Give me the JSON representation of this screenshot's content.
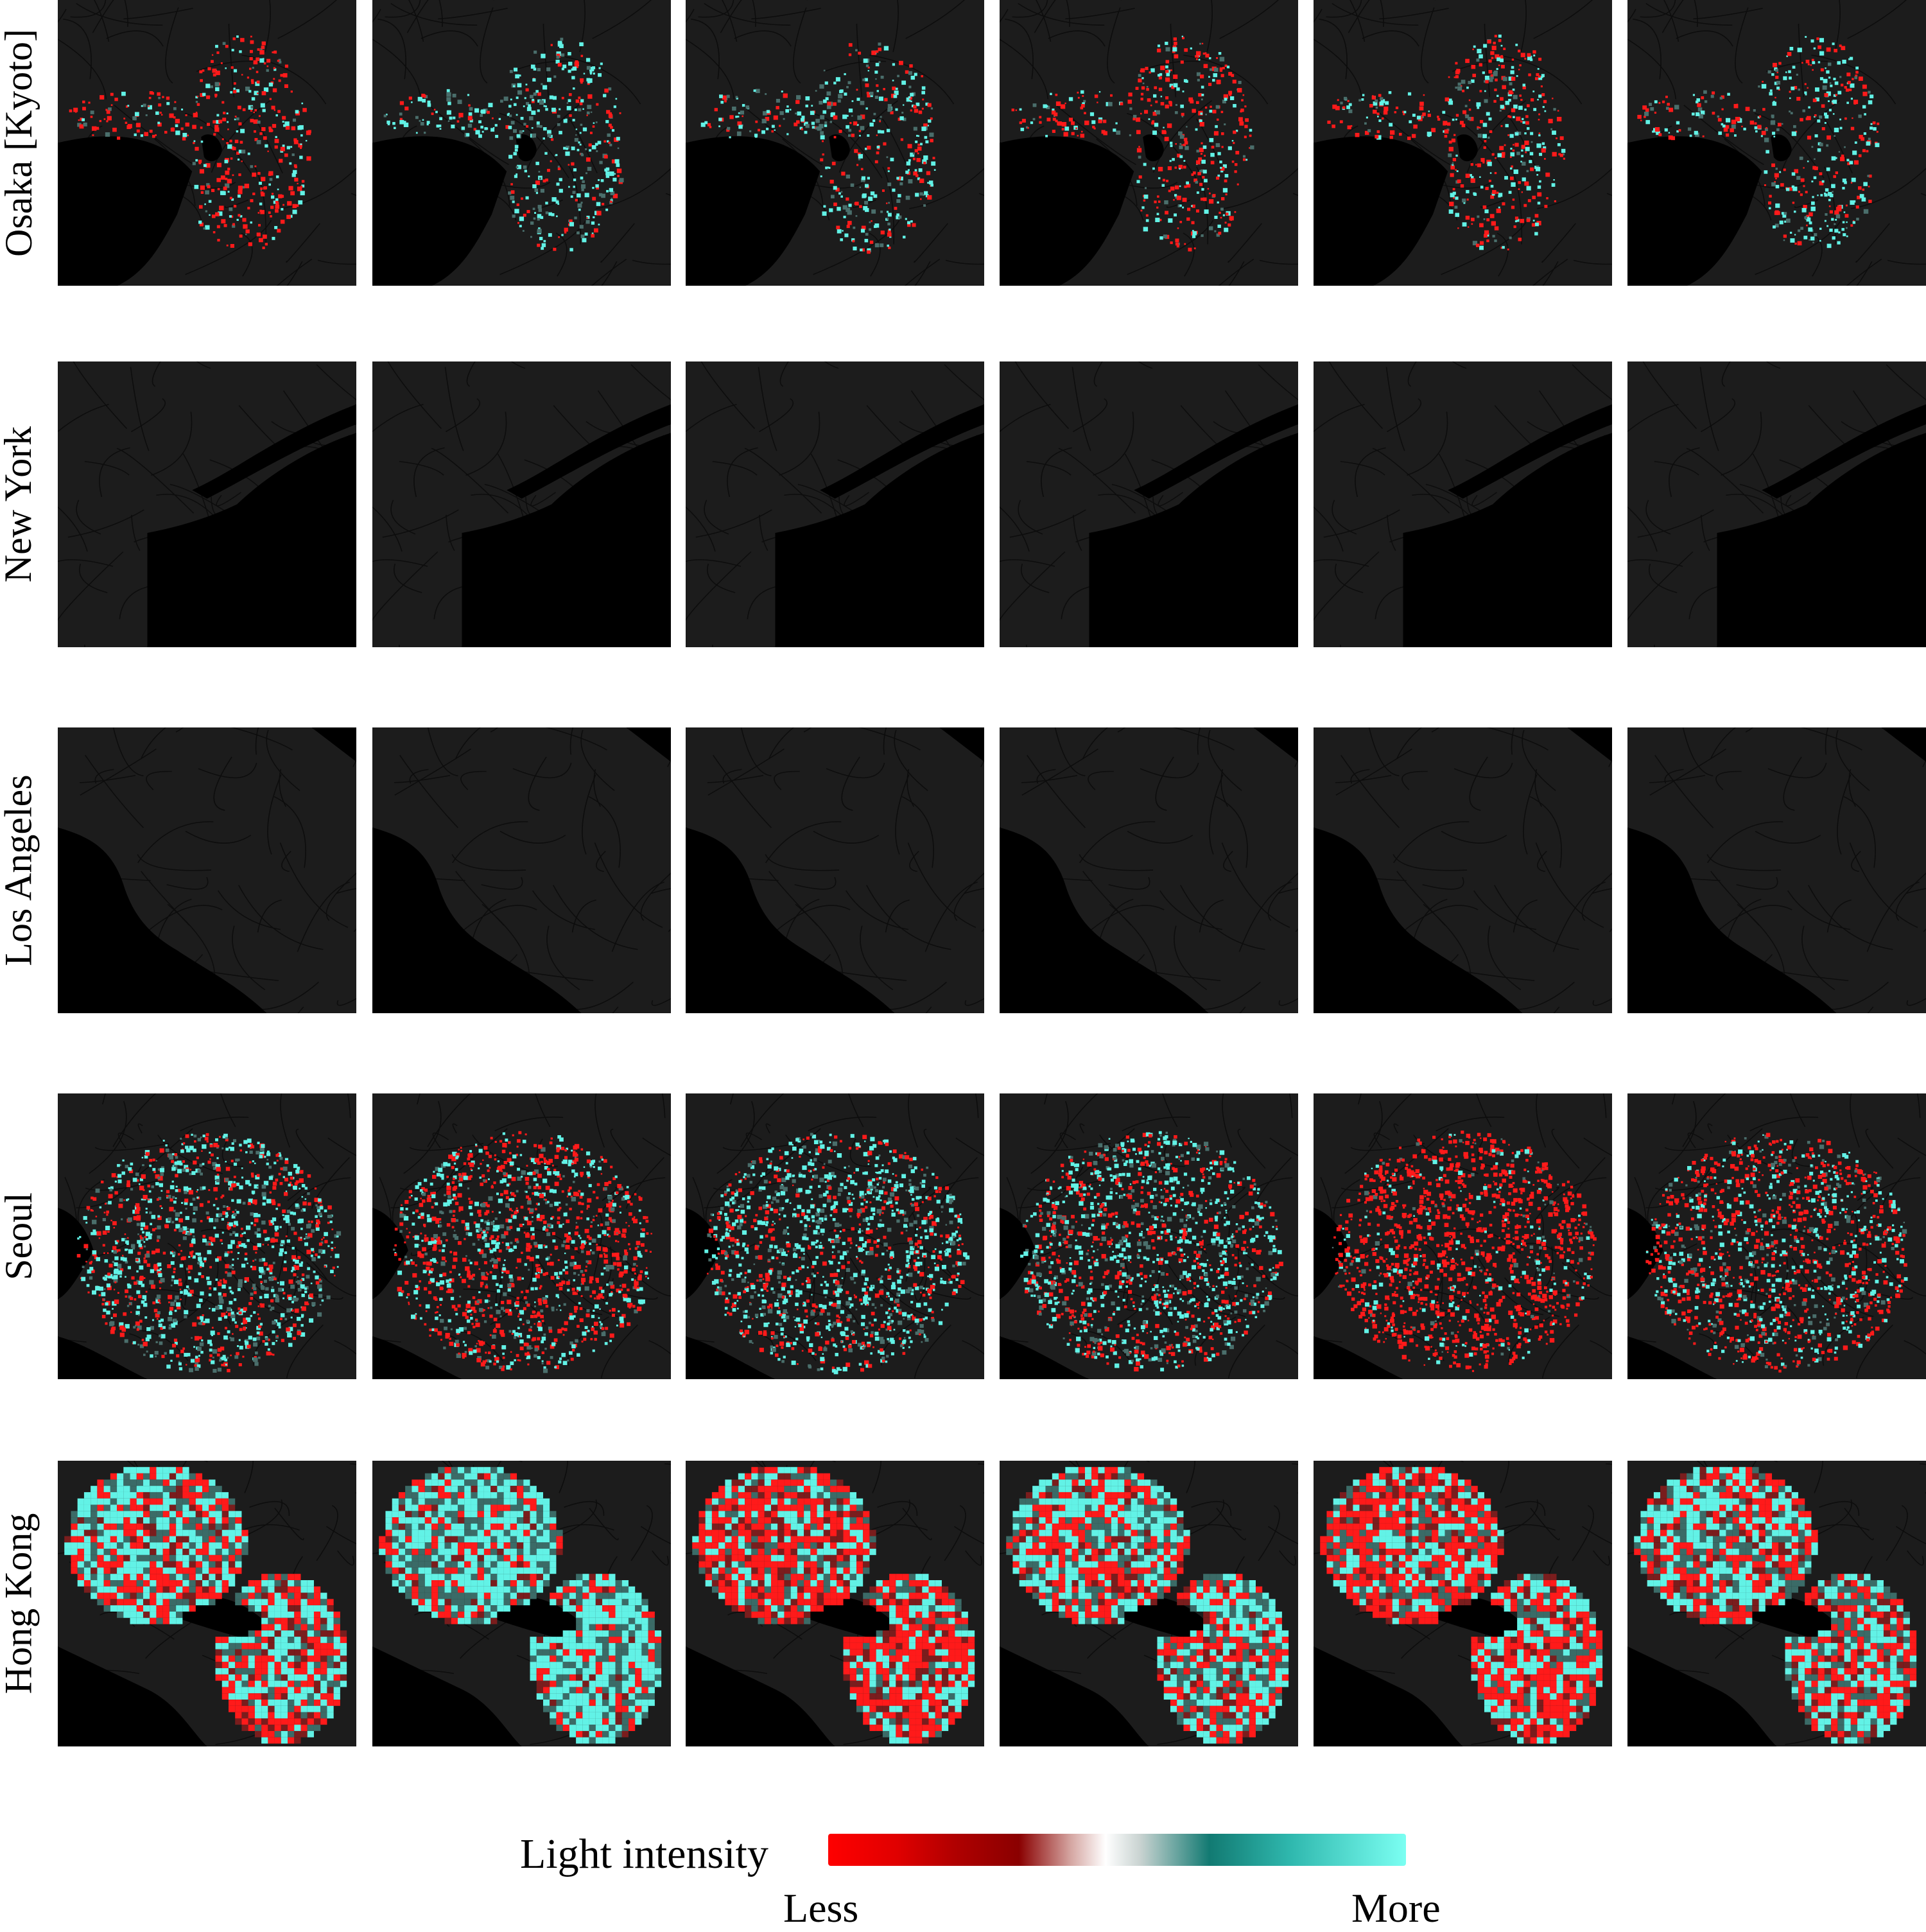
{
  "rows": [
    {
      "id": "osaka",
      "label": "Osaka [Kyoto]",
      "style": "scatter-dense",
      "colors": {
        "base": "#1c1c1c",
        "water": "#000000",
        "less": "#ff1a1a",
        "more": "#62f2e6"
      }
    },
    {
      "id": "new-york",
      "label": "New York",
      "style": "empty",
      "colors": {
        "base": "#1c1c1c",
        "water": "#000000"
      }
    },
    {
      "id": "los-angeles",
      "label": "Los Angeles",
      "style": "empty",
      "colors": {
        "base": "#1c1c1c",
        "water": "#000000"
      }
    },
    {
      "id": "seoul",
      "label": "Seoul",
      "style": "scatter-mixed",
      "colors": {
        "base": "#1c1c1c",
        "water": "#000000",
        "less": "#ff1a1a",
        "more": "#62f2e6"
      }
    },
    {
      "id": "hong-kong",
      "label": "Hong Kong",
      "style": "pixel-grid",
      "colors": {
        "base": "#1c1c1c",
        "water": "#000000",
        "less": "#ff1a1a",
        "more": "#62f2e6"
      }
    }
  ],
  "columns_per_row": 6,
  "legend": {
    "title": "Light intensity",
    "low_label": "Less",
    "high_label": "More",
    "gradient_colors": [
      "#ff0000",
      "#8a0000",
      "#ffffff",
      "#127a72",
      "#7bfff2"
    ]
  }
}
